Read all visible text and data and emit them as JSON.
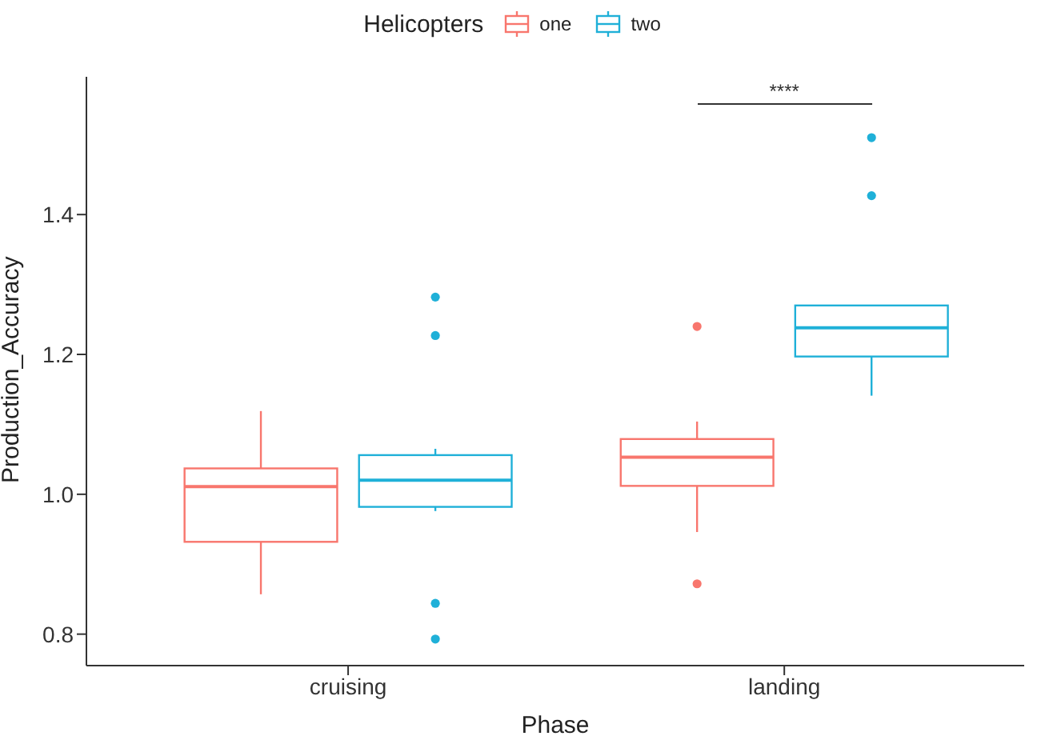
{
  "chart_data": {
    "type": "box",
    "xlabel": "Phase",
    "ylabel": "Production_Accuracy",
    "legend_title": "Helicopters",
    "legend": "top",
    "grid": false,
    "categories": [
      "cruising",
      "landing"
    ],
    "ylim": [
      0.755,
      1.597
    ],
    "yticks": [
      0.8,
      {
        "value": 1.0,
        "label": "1.0"
      },
      1.2,
      1.4
    ],
    "series": [
      {
        "name": "one",
        "color": "#f8766d",
        "boxes": [
          {
            "low": 0.857,
            "q1": 0.932,
            "median": 1.011,
            "q3": 1.037,
            "high": 1.119
          },
          {
            "low": 0.946,
            "q1": 1.012,
            "median": 1.053,
            "q3": 1.079,
            "high": 1.104,
            "outliers": [
              1.24,
              0.872
            ]
          }
        ]
      },
      {
        "name": "two",
        "color": "#1fb0d8",
        "boxes": [
          {
            "low": 0.976,
            "q1": 0.982,
            "median": 1.02,
            "q3": 1.056,
            "high": 1.065,
            "outliers": [
              1.282,
              1.227,
              0.844,
              0.793
            ]
          },
          {
            "low": 1.141,
            "q1": 1.197,
            "median": 1.238,
            "q3": 1.27,
            "high": 1.27,
            "outliers": [
              1.51,
              1.427
            ]
          }
        ]
      }
    ],
    "annotations": [
      "****"
    ]
  }
}
